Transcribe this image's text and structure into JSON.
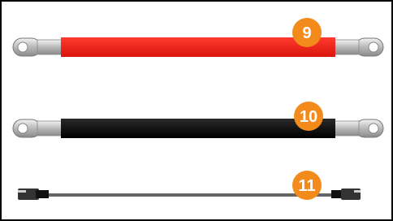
{
  "items": [
    {
      "label": "9"
    },
    {
      "label": "10"
    },
    {
      "label": "11"
    }
  ]
}
